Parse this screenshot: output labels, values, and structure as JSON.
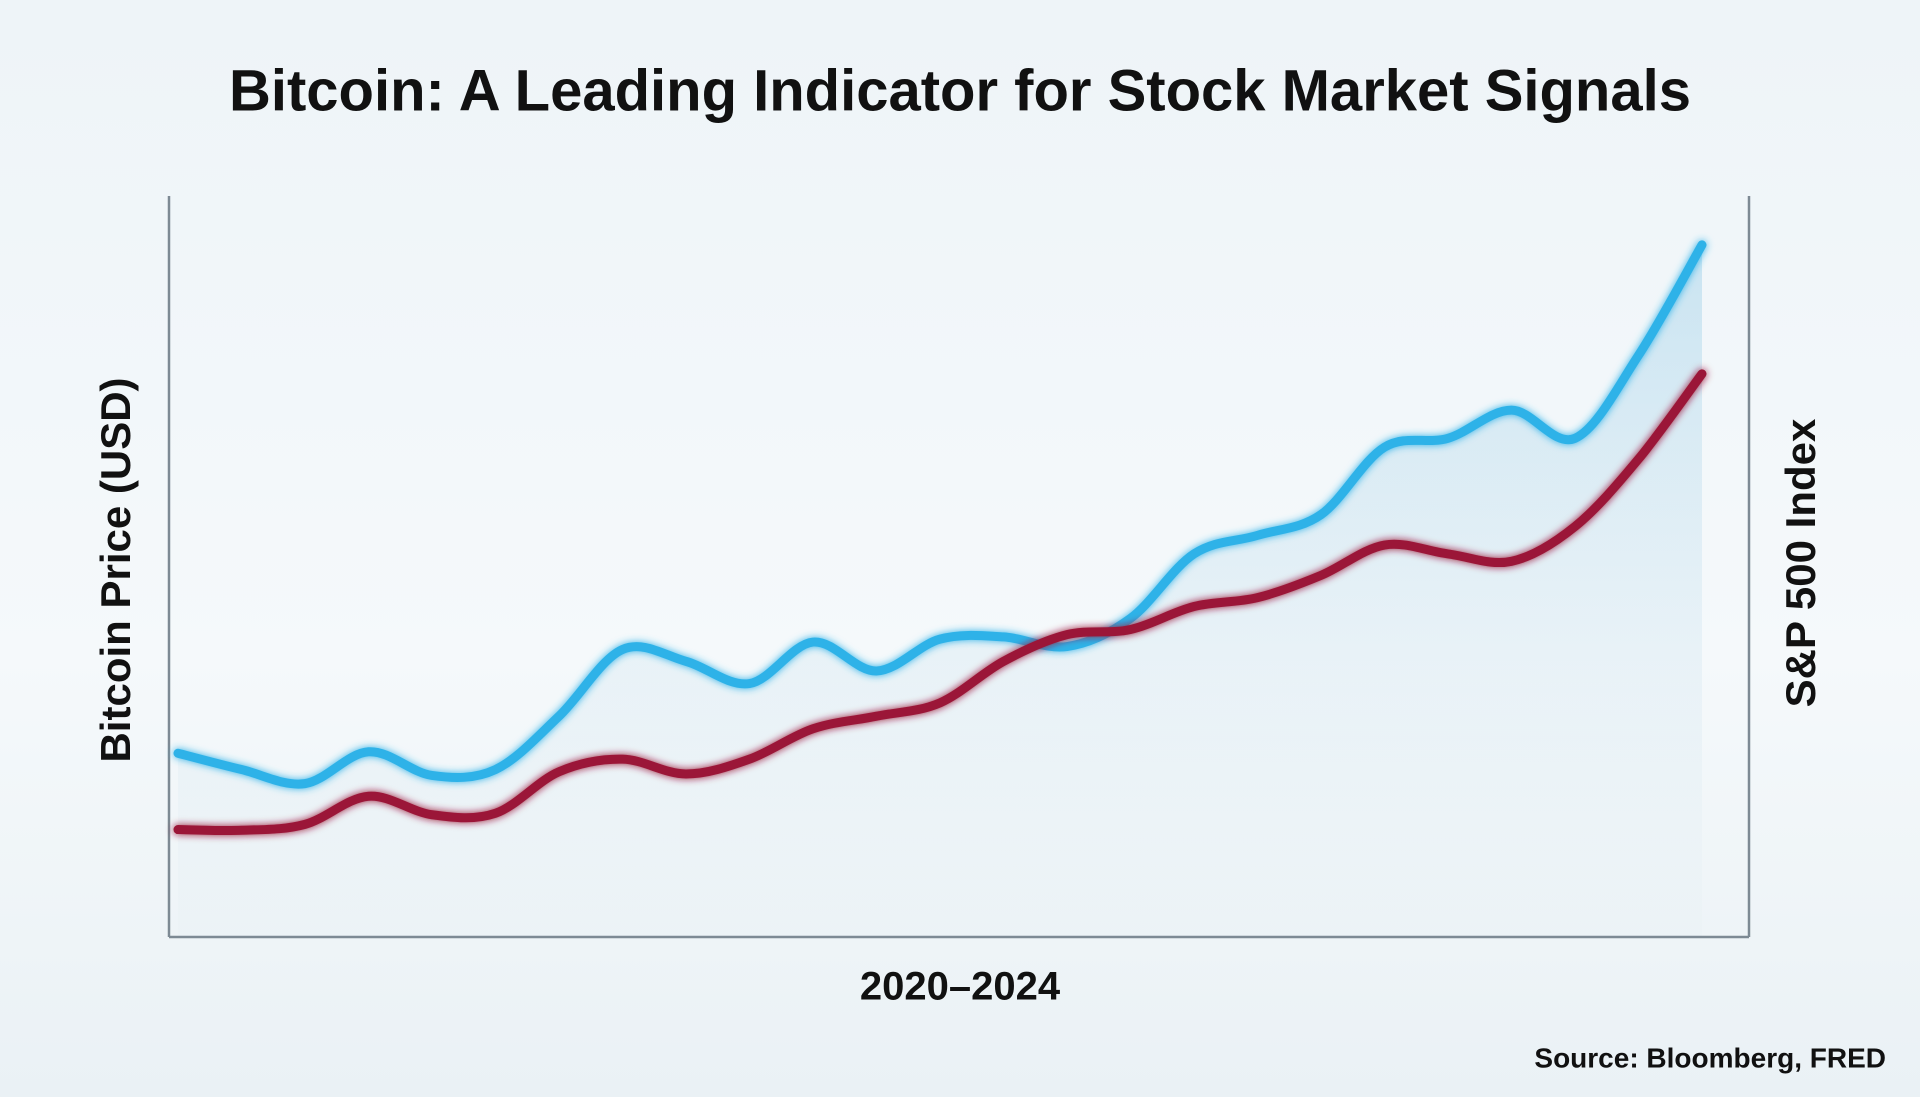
{
  "chart_data": {
    "type": "line",
    "title": "Bitcoin: A Leading Indicator for Stock Market Signals",
    "xlabel": "2020–2024",
    "ylabel": "Bitcoin Price (USD)",
    "y2label": "S&P 500 Index",
    "source": "Source: Bloomberg, FRED",
    "ylim": [
      0,
      100
    ],
    "y2lim": [
      0,
      100
    ],
    "series": [
      {
        "color": "#2fb2e8",
        "values": [
          24.8,
          22.6,
          20.7,
          25.0,
          21.8,
          22.6,
          29.8,
          38.8,
          37.2,
          34.2,
          39.8,
          35.9,
          40.2,
          40.5,
          39.2,
          43.0,
          51.7,
          54.2,
          57.0,
          66.1,
          67.3,
          71.1,
          67.3,
          78.5,
          93.4
        ]
      },
      {
        "color": "#9b1538",
        "axis": "y2",
        "values": [
          14.5,
          14.4,
          15.2,
          19.0,
          16.5,
          16.7,
          22.3,
          24.0,
          22.0,
          24.0,
          28.1,
          29.8,
          31.6,
          37.2,
          40.8,
          41.5,
          44.6,
          45.8,
          48.8,
          52.9,
          51.7,
          50.7,
          55.4,
          64.5,
          76.0
        ]
      }
    ]
  }
}
